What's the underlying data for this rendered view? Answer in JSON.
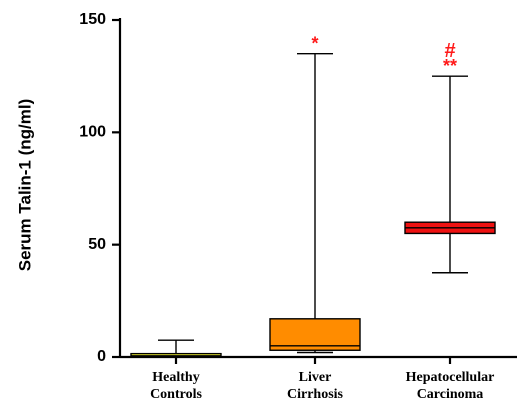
{
  "chart_data": {
    "type": "boxplot",
    "title": "",
    "xlabel": "",
    "ylabel": "Serum Talin-1 (ng/ml)",
    "ylim": [
      0,
      150
    ],
    "yticks": [
      0,
      50,
      100,
      150
    ],
    "grid": false,
    "categories": [
      {
        "lines": [
          "Healthy",
          "Controls"
        ]
      },
      {
        "lines": [
          "Liver",
          "Cirrhosis"
        ]
      },
      {
        "lines": [
          "Hepatocellular",
          "Carcinoma"
        ]
      }
    ],
    "groups": [
      {
        "min": 0,
        "q1": 0,
        "median": 0.5,
        "q3": 1.5,
        "max": 7.5,
        "color": "#ffff33",
        "annotation": ""
      },
      {
        "min": 2,
        "q1": 3,
        "median": 5,
        "q3": 17,
        "max": 135,
        "color": "#ff8c00",
        "annotation": "*"
      },
      {
        "min": 37.5,
        "q1": 55,
        "median": 57.5,
        "q3": 60,
        "max": 125,
        "color": "#ee1111",
        "annotation": "**",
        "annotation_top": "#"
      }
    ]
  }
}
